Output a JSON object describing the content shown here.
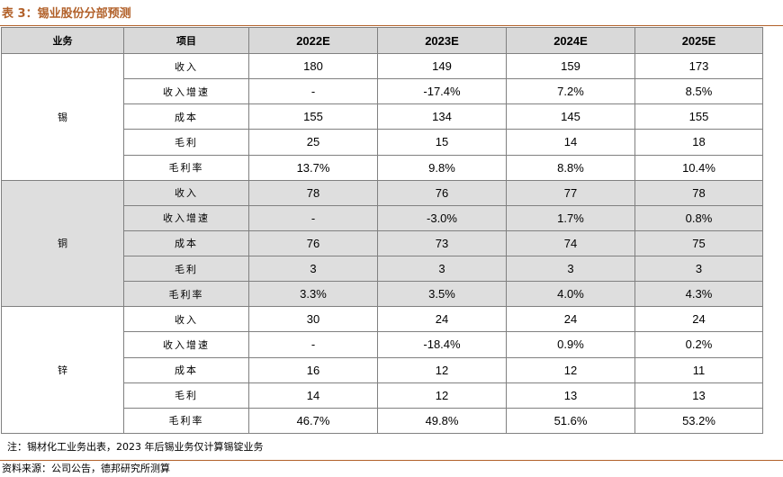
{
  "title": "表 3：锡业股份分部预测",
  "header": {
    "segment": "业务",
    "item": "项目",
    "years": [
      "2022E",
      "2023E",
      "2024E",
      "2025E"
    ]
  },
  "segments": [
    {
      "name": "锡",
      "rows": [
        {
          "item": "收入",
          "values": [
            "180",
            "149",
            "159",
            "173"
          ]
        },
        {
          "item": "收入增速",
          "values": [
            "-",
            "-17.4%",
            "7.2%",
            "8.5%"
          ]
        },
        {
          "item": "成本",
          "values": [
            "155",
            "134",
            "145",
            "155"
          ]
        },
        {
          "item": "毛利",
          "values": [
            "25",
            "15",
            "14",
            "18"
          ]
        },
        {
          "item": "毛利率",
          "values": [
            "13.7%",
            "9.8%",
            "8.8%",
            "10.4%"
          ]
        }
      ]
    },
    {
      "name": "铜",
      "rows": [
        {
          "item": "收入",
          "values": [
            "78",
            "76",
            "77",
            "78"
          ]
        },
        {
          "item": "收入增速",
          "values": [
            "-",
            "-3.0%",
            "1.7%",
            "0.8%"
          ]
        },
        {
          "item": "成本",
          "values": [
            "76",
            "73",
            "74",
            "75"
          ]
        },
        {
          "item": "毛利",
          "values": [
            "3",
            "3",
            "3",
            "3"
          ]
        },
        {
          "item": "毛利率",
          "values": [
            "3.3%",
            "3.5%",
            "4.0%",
            "4.3%"
          ]
        }
      ]
    },
    {
      "name": "锌",
      "rows": [
        {
          "item": "收入",
          "values": [
            "30",
            "24",
            "24",
            "24"
          ]
        },
        {
          "item": "收入增速",
          "values": [
            "-",
            "-18.4%",
            "0.9%",
            "0.2%"
          ]
        },
        {
          "item": "成本",
          "values": [
            "16",
            "12",
            "12",
            "11"
          ]
        },
        {
          "item": "毛利",
          "values": [
            "14",
            "12",
            "13",
            "13"
          ]
        },
        {
          "item": "毛利率",
          "values": [
            "46.7%",
            "49.8%",
            "51.6%",
            "53.2%"
          ]
        }
      ]
    }
  ],
  "note": "注：锡材化工业务出表，2023 年后锡业务仅计算锡锭业务",
  "source": "资料来源：公司公告，德邦研究所测算",
  "colors": {
    "accent": "#b2612a",
    "header_fill": "#d9d9d9",
    "band_fill": "#dedede",
    "border": "#808080"
  }
}
